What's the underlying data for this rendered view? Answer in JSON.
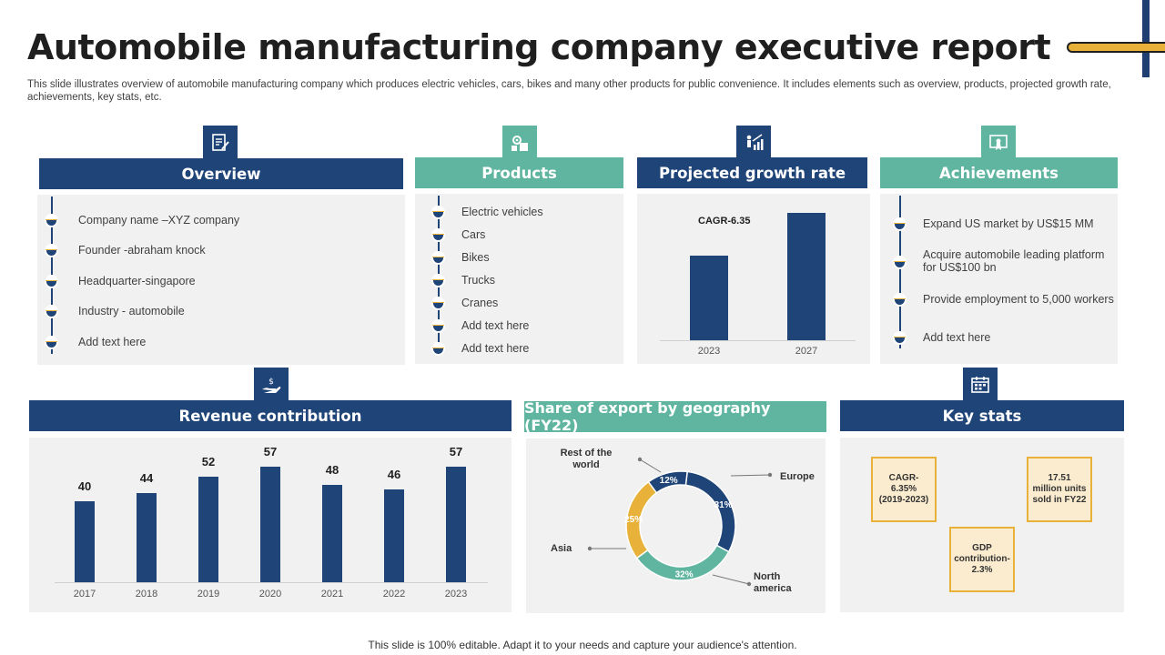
{
  "title": "Automobile manufacturing company executive report",
  "subtitle": "This slide illustrates overview of automobile manufacturing company which produces electric vehicles, cars, bikes and many other products for public convenience. It includes elements such as overview, products, projected growth rate, achievements, key stats, etc.",
  "overview": {
    "header": "Overview",
    "icon": "document-pen-icon",
    "items": [
      "Company name –XYZ company",
      "Founder -abraham knock",
      "Headquarter-singapore",
      "Industry - automobile",
      "Add text here"
    ]
  },
  "products": {
    "header": "Products",
    "icon": "gear-puzzle-icon",
    "items": [
      "Electric vehicles",
      "Cars",
      "Bikes",
      "Trucks",
      "Cranes",
      "Add text here",
      "Add text here"
    ]
  },
  "growth": {
    "header": "Projected growth rate",
    "icon": "growth-chart-icon",
    "cagr_label": "CAGR-6.35"
  },
  "achievements": {
    "header": "Achievements",
    "icon": "certificate-icon",
    "items": [
      "Expand US market by US$15 MM",
      "Acquire automobile leading platform for US$100 bn",
      "Provide employment to 5,000 workers",
      "Add text here"
    ]
  },
  "revenue": {
    "header": "Revenue contribution",
    "icon": "money-hand-icon"
  },
  "export": {
    "header": "Share of export by geography (FY22)",
    "labels": {
      "rest": "Rest of the world",
      "europe": "Europe",
      "asia": "Asia",
      "na": "North america"
    }
  },
  "keystats": {
    "header": "Key stats",
    "icon": "calendar-icon",
    "stats": [
      "CAGR-6.35% (2019-2023)",
      "GDP contribution-2.3%",
      "17.51 million units sold in FY22"
    ]
  },
  "footer": "This slide is 100% editable. Adapt it to your needs and capture your audience's attention.",
  "colors": {
    "navy": "#1f4478",
    "teal": "#5fb59f",
    "gold": "#e8b13a"
  },
  "chart_data": [
    {
      "type": "bar",
      "title": "Projected growth rate",
      "categories": [
        "2023",
        "2027"
      ],
      "values": [
        1.0,
        1.5
      ],
      "annotation": "CAGR-6.35"
    },
    {
      "type": "bar",
      "title": "Revenue contribution",
      "categories": [
        "2017",
        "2018",
        "2019",
        "2020",
        "2021",
        "2022",
        "2023"
      ],
      "values": [
        40,
        44,
        52,
        57,
        48,
        46,
        57
      ],
      "ylim": [
        0,
        60
      ]
    },
    {
      "type": "pie",
      "title": "Share of export by geography (FY22)",
      "categories": [
        "Europe",
        "North america",
        "Asia",
        "Rest of the world"
      ],
      "values": [
        31,
        32,
        25,
        12
      ],
      "value_labels": [
        "31%",
        "32%",
        "25%",
        "12%"
      ],
      "colors": [
        "#1f4478",
        "#5fb59f",
        "#e8b13a",
        "#1f4478"
      ]
    }
  ]
}
